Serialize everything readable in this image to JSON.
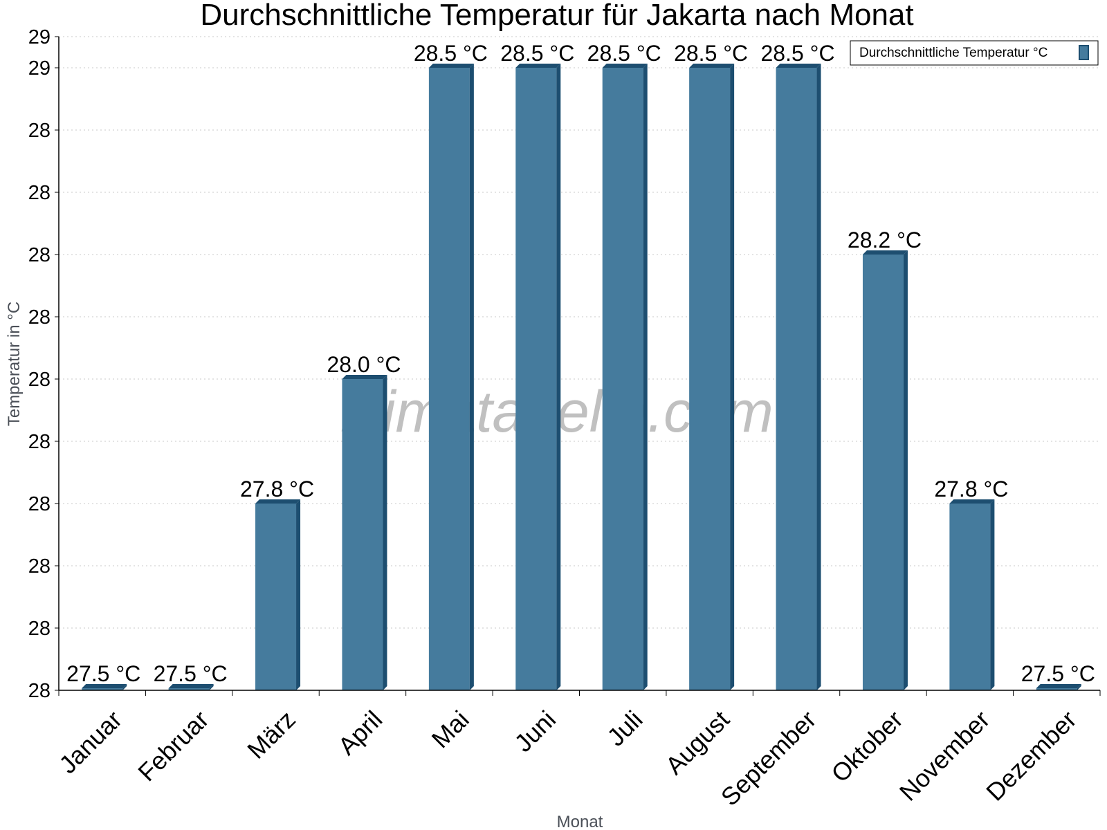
{
  "chart_data": {
    "type": "bar",
    "title": "Durchschnittliche Temperatur für Jakarta nach Monat",
    "xlabel": "Monat",
    "ylabel": "Temperatur in °C",
    "categories": [
      "Januar",
      "Februar",
      "März",
      "April",
      "Mai",
      "Juni",
      "Juli",
      "August",
      "September",
      "Oktober",
      "November",
      "Dezember"
    ],
    "series": [
      {
        "name": "Durchschnittliche Temperatur °C",
        "values": [
          27.5,
          27.5,
          27.8,
          28.0,
          28.5,
          28.5,
          28.5,
          28.5,
          28.5,
          28.2,
          27.8,
          27.5
        ],
        "labels": [
          "27.5 °C",
          "27.5 °C",
          "27.8 °C",
          "28.0 °C",
          "28.5 °C",
          "28.5 °C",
          "28.5 °C",
          "28.5 °C",
          "28.5 °C",
          "28.2 °C",
          "27.8 °C",
          "27.5 °C"
        ]
      }
    ],
    "ylim": [
      27.5,
      28.55
    ],
    "yticks": [
      27.5,
      27.6,
      27.7,
      27.8,
      27.9,
      28.0,
      28.1,
      28.2,
      28.3,
      28.4,
      28.5,
      28.6
    ],
    "ytick_labels": [
      "28",
      "28",
      "28",
      "28",
      "28",
      "28",
      "28",
      "28",
      "28",
      "28",
      "29",
      "29"
    ],
    "grid": true,
    "legend_position": "top-right",
    "colors": {
      "bar": "#457b9d",
      "bar_side": "#1d4e70",
      "grid": "#c8c8c8",
      "axis": "#000000"
    }
  },
  "watermark": "klimatabelle.com"
}
